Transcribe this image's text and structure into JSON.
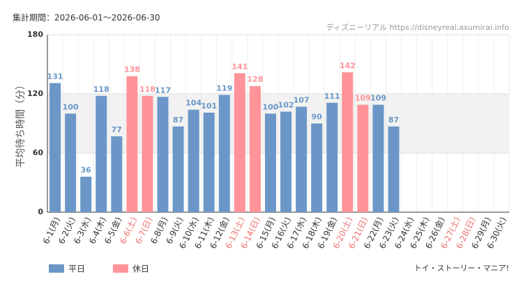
{
  "chart_data": {
    "type": "bar",
    "title": "集計期間：2026-06-01～2026-06-30",
    "source": "ディズニーリアル https://disneyreal.asumirai.info",
    "footer": "トイ・ストーリー・マニア!",
    "y_label": "平均待ち時間（分）",
    "categories": [
      "6-1(月)",
      "6-2(火)",
      "6-3(水)",
      "6-4(木)",
      "6-5(金)",
      "6-6(土)",
      "6-7(日)",
      "6-8(月)",
      "6-9(火)",
      "6-10(水)",
      "6-11(木)",
      "6-12(金)",
      "6-13(土)",
      "6-14(日)",
      "6-15(月)",
      "6-16(火)",
      "6-17(水)",
      "6-18(木)",
      "6-19(金)",
      "6-20(土)",
      "6-21(日)",
      "6-22(月)",
      "6-23(火)",
      "6-24(水)",
      "6-25(木)",
      "6-26(金)",
      "6-27(土)",
      "6-28(日)",
      "6-29(月)",
      "6-30(火)"
    ],
    "category_colors": [
      "#333",
      "#333",
      "#333",
      "#333",
      "#333",
      "#f07070",
      "#f07070",
      "#333",
      "#333",
      "#333",
      "#333",
      "#333",
      "#f07070",
      "#f07070",
      "#333",
      "#333",
      "#333",
      "#333",
      "#333",
      "#f07070",
      "#f07070",
      "#333",
      "#333",
      "#333",
      "#333",
      "#333",
      "#f07070",
      "#f07070",
      "#333",
      "#333"
    ],
    "series": [
      {
        "name": "平日",
        "color": "#6b97c8",
        "values": [
          131,
          100,
          36,
          118,
          77,
          null,
          null,
          117,
          87,
          104,
          101,
          119,
          null,
          null,
          100,
          102,
          107,
          90,
          111,
          null,
          null,
          109,
          87,
          null,
          null,
          null,
          null,
          null,
          null,
          null
        ]
      },
      {
        "name": "休日",
        "color": "#ff9399",
        "values": [
          null,
          null,
          null,
          null,
          null,
          138,
          118,
          null,
          null,
          null,
          null,
          null,
          141,
          128,
          null,
          null,
          null,
          null,
          null,
          142,
          109,
          null,
          null,
          null,
          null,
          null,
          null,
          null,
          null,
          null
        ]
      }
    ],
    "ylim": [
      0,
      180
    ],
    "yticks": [
      0,
      60,
      120,
      180
    ],
    "shaded_band": [
      60,
      120
    ],
    "grid": true
  }
}
